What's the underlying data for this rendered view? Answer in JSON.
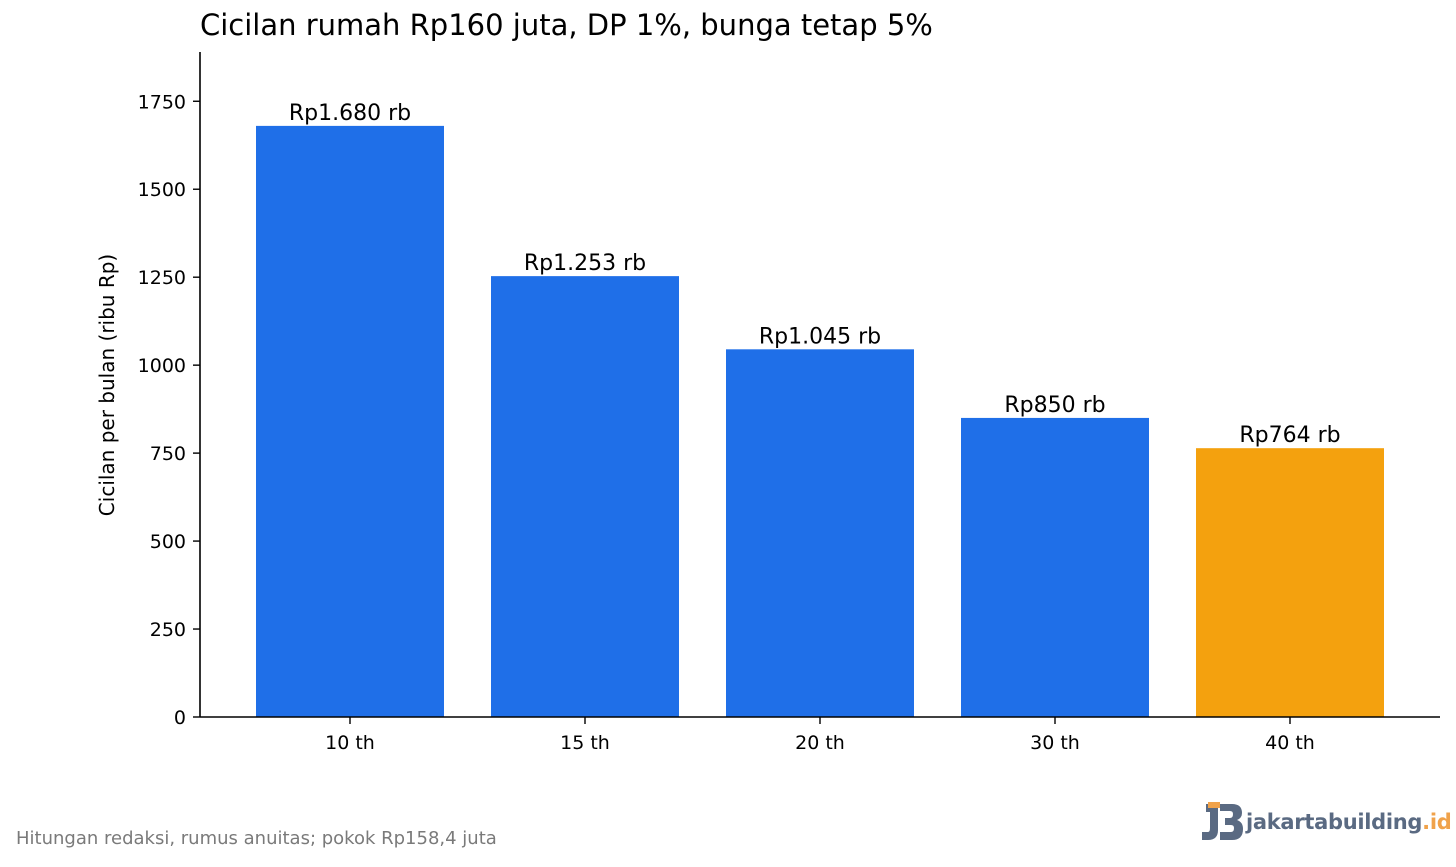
{
  "chart_data": {
    "type": "bar",
    "title": "Cicilan rumah Rp160 juta, DP 1%, bunga tetap 5%",
    "ylabel": "Cicilan per bulan (ribu Rp)",
    "xlabel": "",
    "categories": [
      "10 th",
      "15 th",
      "20 th",
      "30 th",
      "40 th"
    ],
    "values": [
      1680,
      1253,
      1045,
      850,
      764
    ],
    "data_labels": [
      "Rp1.680 rb",
      "Rp1.253 rb",
      "Rp1.045 rb",
      "Rp850 rb",
      "Rp764 rb"
    ],
    "bar_colors": [
      "#1f6fe8",
      "#1f6fe8",
      "#1f6fe8",
      "#1f6fe8",
      "#f4a10e"
    ],
    "yticks": [
      0,
      250,
      500,
      750,
      1000,
      1250,
      1500,
      1750
    ],
    "ylim": [
      0,
      1890
    ],
    "grid": false,
    "legend": "none"
  },
  "footer": {
    "note": "Hitungan redaksi, rumus anuitas; pokok Rp158,4 juta"
  },
  "brand": {
    "name": "jakartabuilding",
    "tld": ".id",
    "icon": "jb-logo-icon",
    "colors": {
      "primary": "#5a6a82",
      "accent": "#f0a24a"
    }
  }
}
